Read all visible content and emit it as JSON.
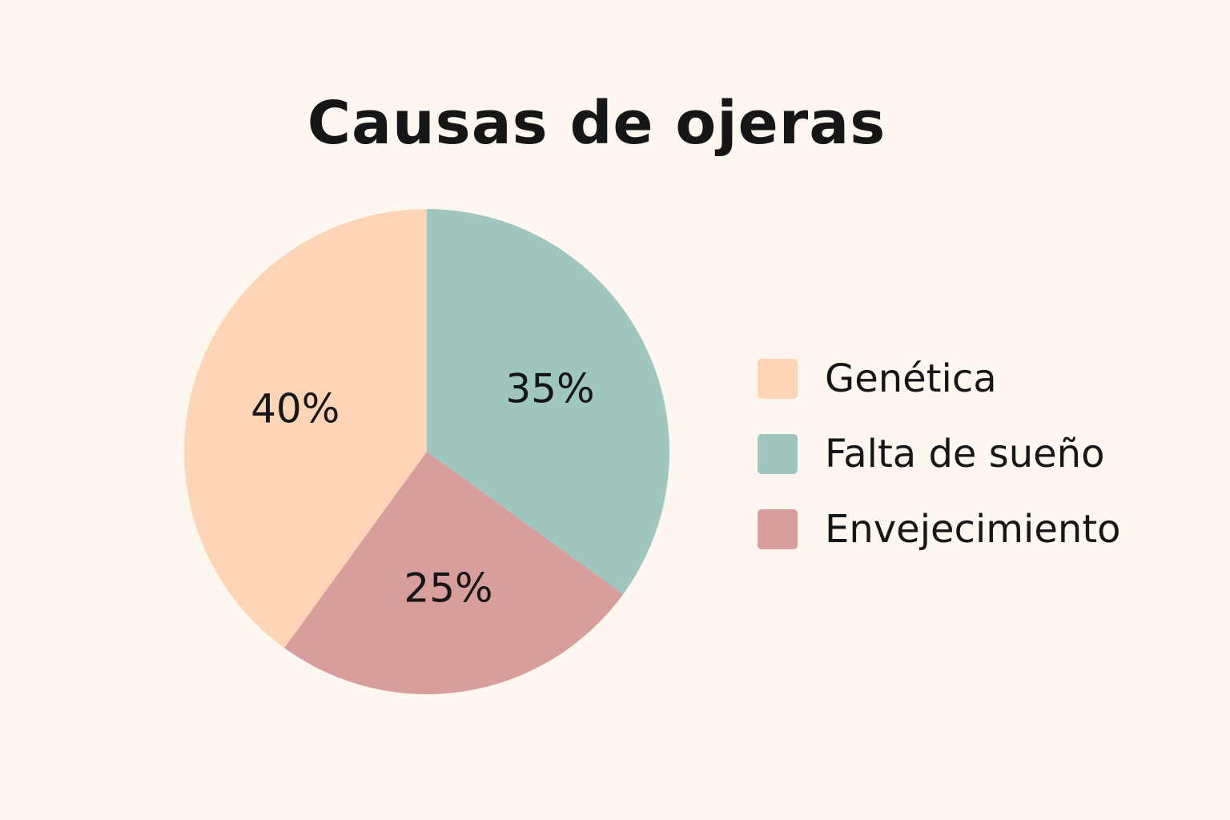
{
  "chart_data": {
    "type": "pie",
    "title": "Causas de ojeras",
    "categories": [
      "Genética",
      "Falta de sueño",
      "Envejecimiento"
    ],
    "values": [
      40,
      35,
      25
    ],
    "data_labels": [
      "40%",
      "35%",
      "25%"
    ],
    "colors": [
      "#fdd5b6",
      "#9fc6bf",
      "#d89e9c"
    ],
    "legend_placement": "right"
  },
  "background_color": "#fdf7f0"
}
